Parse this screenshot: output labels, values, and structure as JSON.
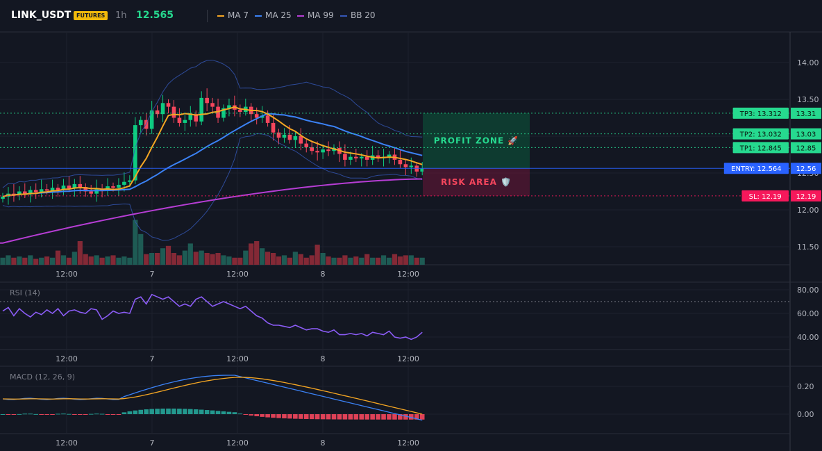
{
  "header": {
    "symbol": "LINK_USDT",
    "badge": "FUTURES",
    "timeframe": "1h",
    "last_price": "12.565"
  },
  "legend": [
    {
      "label": "MA 7",
      "color": "#f5a623"
    },
    {
      "label": "MA 25",
      "color": "#3b82f6"
    },
    {
      "label": "MA 99",
      "color": "#b63dd4"
    },
    {
      "label": "BB 20",
      "color": "#3557b7"
    }
  ],
  "price_axis": {
    "ticks": [
      "14.00",
      "13.50",
      "13.00",
      "12.50",
      "12.00",
      "11.50"
    ]
  },
  "time_axis": {
    "ticks": [
      "12:00",
      "7",
      "12:00",
      "8",
      "12:00"
    ]
  },
  "levels": {
    "tp3": {
      "value": 13.312,
      "label": "TP3: 13.312",
      "axis": "13.31",
      "color": "#26d98f"
    },
    "tp2": {
      "value": 13.032,
      "label": "TP2: 13.032",
      "axis": "13.03",
      "color": "#26d98f"
    },
    "tp1": {
      "value": 12.845,
      "label": "TP1: 12.845",
      "axis": "12.85",
      "color": "#26d98f"
    },
    "entry": {
      "value": 12.564,
      "label": "ENTRY: 12.564",
      "axis": "12.56",
      "color": "#2962ff"
    },
    "sl": {
      "value": 12.19,
      "label": "SL: 12.19",
      "axis": "12.19",
      "color": "#f6185b"
    }
  },
  "zones": {
    "profit": "PROFIT ZONE 🚀",
    "risk": "RISK AREA 🛡️"
  },
  "rsi": {
    "label": "RSI (14)",
    "ticks": [
      "80.00",
      "60.00",
      "40.00"
    ],
    "overbought": 70
  },
  "macd": {
    "label": "MACD (12, 26, 9)",
    "ticks": [
      "0.20",
      "0.00"
    ]
  },
  "colors": {
    "up": "#26a69a",
    "up_bright": "#0ecb81",
    "down": "#f6465d",
    "background": "#131722"
  }
}
